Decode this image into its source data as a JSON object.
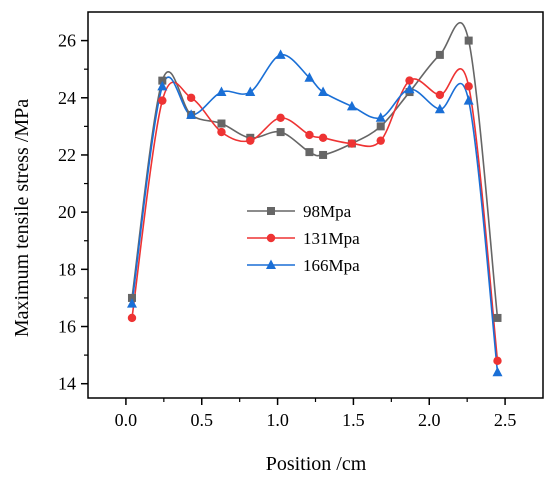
{
  "chart_data": {
    "type": "line",
    "title": "",
    "xlabel": "Position /cm",
    "ylabel": "Maximum tensile stress /MPa",
    "xlim": [
      -0.25,
      2.75
    ],
    "ylim": [
      13.5,
      27
    ],
    "x_ticks": [
      0.0,
      0.5,
      1.0,
      1.5,
      2.0,
      2.5
    ],
    "x_tick_labels": [
      "0.0",
      "0.5",
      "1.0",
      "1.5",
      "2.0",
      "2.5"
    ],
    "y_ticks": [
      14,
      16,
      18,
      20,
      22,
      24,
      26
    ],
    "y_tick_labels": [
      "14",
      "16",
      "18",
      "20",
      "22",
      "24",
      "26"
    ],
    "grid": false,
    "legend_position": "center",
    "series": [
      {
        "name": "98Mpa",
        "color": "#666666",
        "marker": "square",
        "x": [
          0.04,
          0.24,
          0.43,
          0.63,
          0.82,
          1.02,
          1.21,
          1.3,
          1.49,
          1.68,
          1.87,
          2.07,
          2.26,
          2.45
        ],
        "y": [
          17.0,
          24.6,
          23.4,
          23.1,
          22.6,
          22.8,
          22.1,
          22.0,
          22.4,
          23.0,
          24.2,
          25.5,
          26.0,
          16.3
        ]
      },
      {
        "name": "131Mpa",
        "color": "#ee3333",
        "marker": "circle",
        "x": [
          0.04,
          0.24,
          0.43,
          0.63,
          0.82,
          1.02,
          1.21,
          1.3,
          1.49,
          1.68,
          1.87,
          2.07,
          2.26,
          2.45
        ],
        "y": [
          16.3,
          23.9,
          24.0,
          22.8,
          22.5,
          23.3,
          22.7,
          22.6,
          22.4,
          22.5,
          24.6,
          24.1,
          24.4,
          14.8
        ]
      },
      {
        "name": "166Mpa",
        "color": "#1a6fd6",
        "marker": "triangle",
        "x": [
          0.04,
          0.24,
          0.43,
          0.63,
          0.82,
          1.02,
          1.21,
          1.3,
          1.49,
          1.68,
          1.87,
          2.07,
          2.26,
          2.45
        ],
        "y": [
          16.8,
          24.4,
          23.4,
          24.2,
          24.2,
          25.5,
          24.7,
          24.2,
          23.7,
          23.3,
          24.3,
          23.6,
          23.9,
          14.4
        ]
      }
    ]
  }
}
